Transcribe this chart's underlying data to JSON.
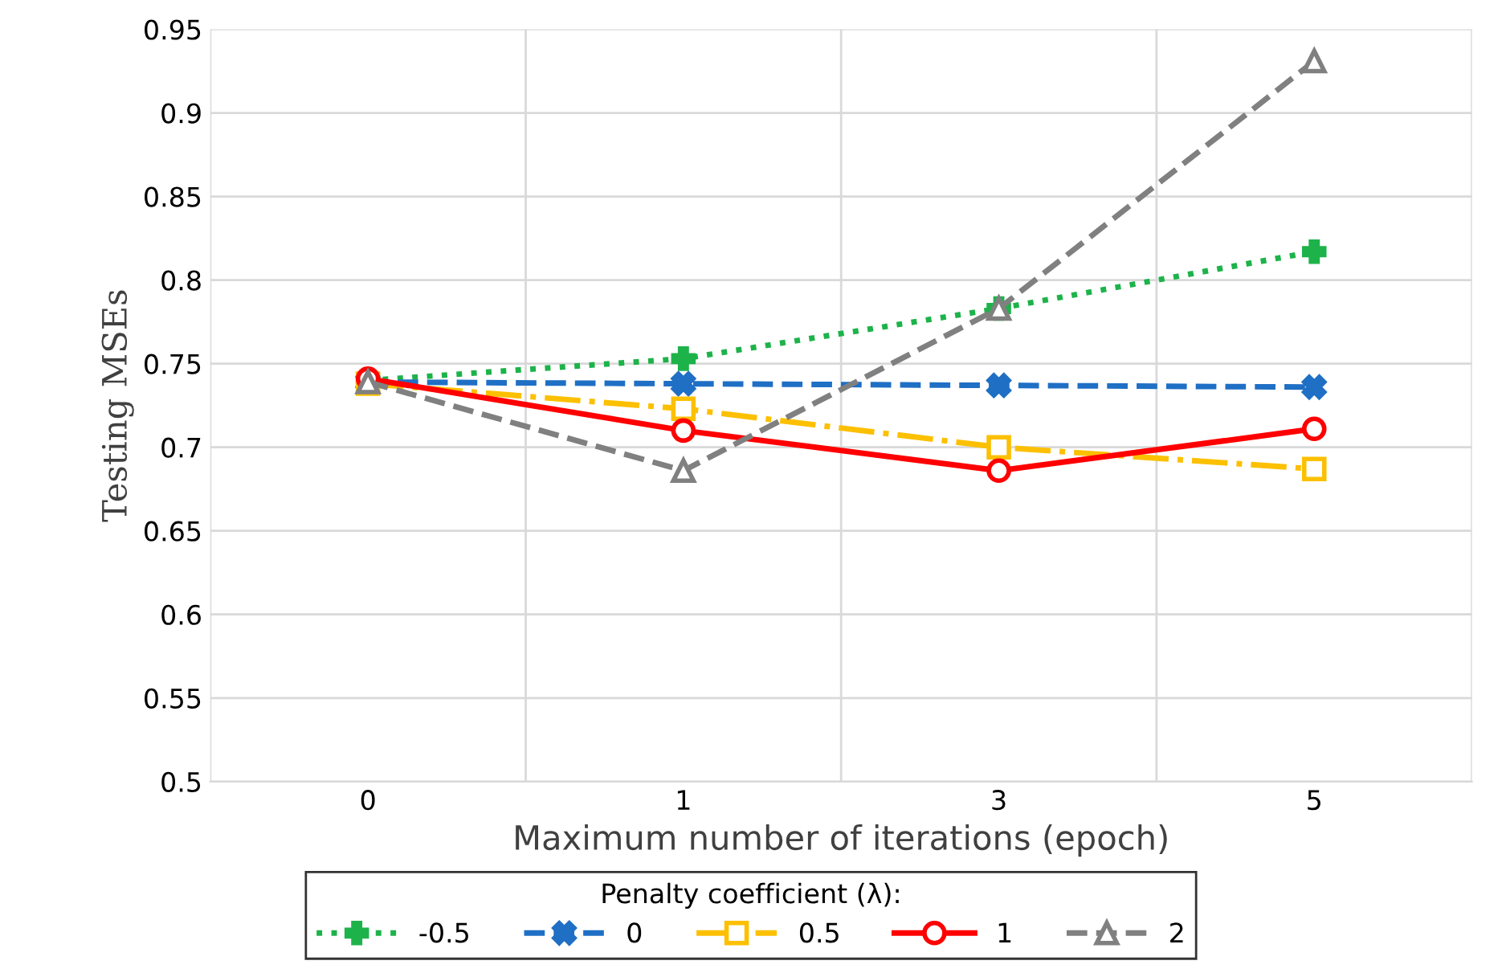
{
  "chart_data": {
    "type": "line",
    "xlabel": "Maximum number of iterations (epoch)",
    "ylabel": "Testing MSEs",
    "legend_title": "Penalty coefficient (λ):",
    "categories": [
      "0",
      "1",
      "3",
      "5"
    ],
    "series": [
      {
        "name": "-0.5",
        "color": "#1db34a",
        "marker": "plus",
        "line_style": "dotted",
        "values": [
          0.74,
          0.753,
          0.783,
          0.817
        ]
      },
      {
        "name": "0",
        "color": "#1f6fc5",
        "marker": "cross",
        "line_style": "dashed",
        "values": [
          0.739,
          0.738,
          0.737,
          0.736
        ]
      },
      {
        "name": "0.5",
        "color": "#fcc000",
        "marker": "square",
        "line_style": "dashdot",
        "values": [
          0.738,
          0.723,
          0.7,
          0.687
        ]
      },
      {
        "name": "1",
        "color": "#ff0000",
        "marker": "circle",
        "line_style": "solid",
        "values": [
          0.741,
          0.71,
          0.686,
          0.711
        ]
      },
      {
        "name": "2",
        "color": "#808080",
        "marker": "triangle",
        "line_style": "dashed",
        "values": [
          0.739,
          0.686,
          0.783,
          0.931
        ]
      }
    ],
    "ylim": [
      0.5,
      0.95
    ],
    "yticks": [
      {
        "value": 0.5,
        "label": "0.5"
      },
      {
        "value": 0.55,
        "label": "0.55"
      },
      {
        "value": 0.6,
        "label": "0.6"
      },
      {
        "value": 0.65,
        "label": "0.65"
      },
      {
        "value": 0.7,
        "label": "0.7"
      },
      {
        "value": 0.75,
        "label": "0.75"
      },
      {
        "value": 0.8,
        "label": "0.8"
      },
      {
        "value": 0.85,
        "label": "0.85"
      },
      {
        "value": 0.9,
        "label": "0.9"
      },
      {
        "value": 0.95,
        "label": "0.95"
      }
    ],
    "grid": true,
    "legend": "bottom"
  }
}
